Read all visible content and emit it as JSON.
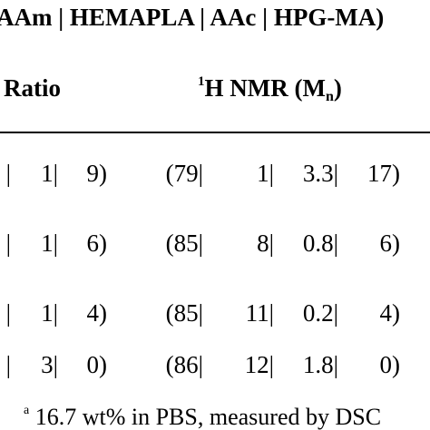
{
  "table": {
    "title": "AAm | HEMAPLA | AAc | HPG-MA)",
    "headers": {
      "ratio": "Ratio",
      "nmr_prefix_sup": "1",
      "nmr_main": "H NMR (M",
      "nmr_sub": "n",
      "nmr_close": ")"
    },
    "rows": [
      {
        "ratio": [
          "|",
          "1|",
          "9)"
        ],
        "nmr": [
          "(79|",
          "1|",
          "3.3|",
          "17)"
        ]
      },
      {
        "ratio": [
          "|",
          "1|",
          "6)"
        ],
        "nmr": [
          "(85|",
          "8|",
          "0.8|",
          "6)"
        ]
      },
      {
        "ratio": [
          "|",
          "1|",
          "4)"
        ],
        "nmr": [
          "(85|",
          "11|",
          "0.2|",
          "4)"
        ]
      },
      {
        "ratio": [
          "|",
          "3|",
          "0)"
        ],
        "nmr": [
          "(86|",
          "12|",
          "1.8|",
          "0)"
        ]
      }
    ],
    "footnote": {
      "marker": "a",
      "text": " 16.7 wt% in PBS, measured by DSC"
    }
  }
}
